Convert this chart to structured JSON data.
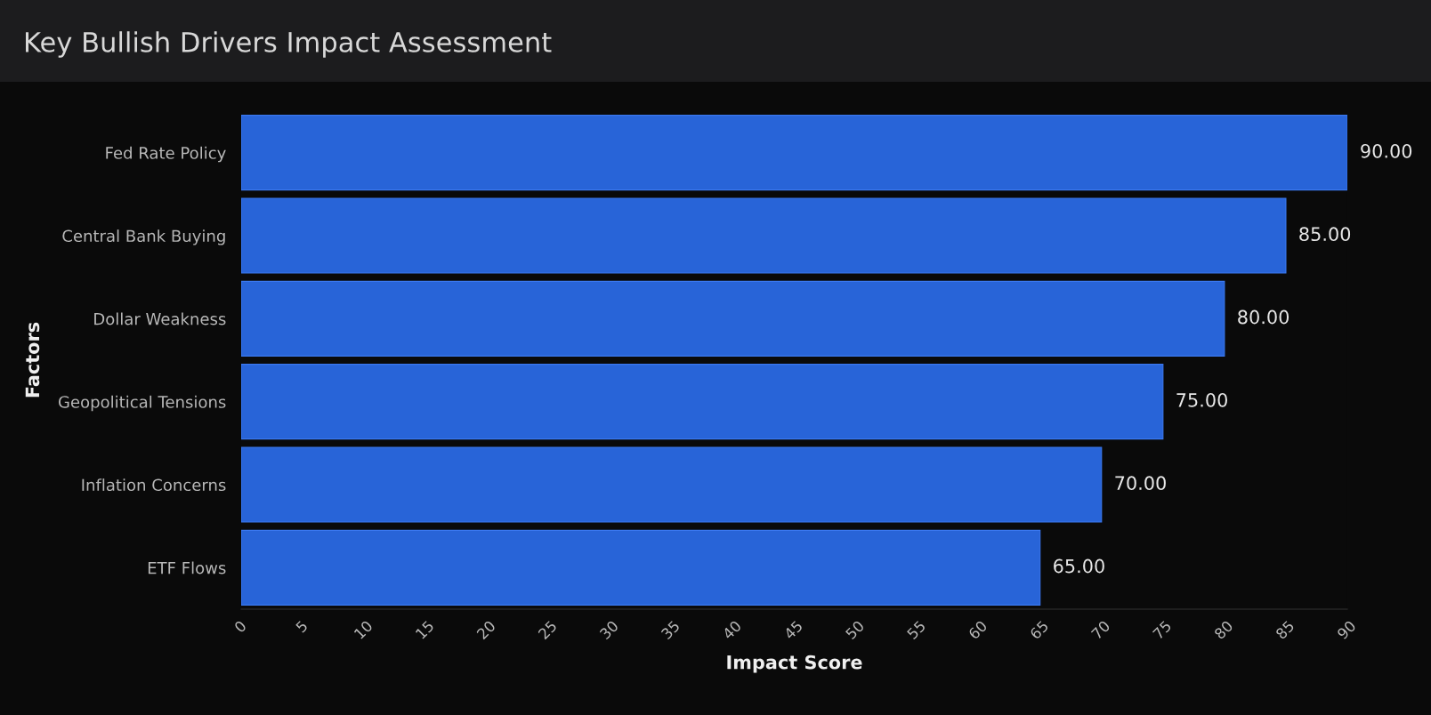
{
  "chart_data": {
    "type": "bar",
    "orientation": "horizontal",
    "title": "Key Bullish Drivers Impact Assessment",
    "xlabel": "Impact Score",
    "ylabel": "Factors",
    "categories": [
      "Fed Rate Policy",
      "Central Bank Buying",
      "Dollar Weakness",
      "Geopolitical Tensions",
      "Inflation Concerns",
      "ETF Flows"
    ],
    "values": [
      90,
      85,
      80,
      75,
      70,
      65
    ],
    "value_labels": [
      "90.00",
      "85.00",
      "80.00",
      "75.00",
      "70.00",
      "65.00"
    ],
    "color": "#2864d8",
    "xlim": [
      0,
      90
    ],
    "xticks": [
      0,
      5,
      10,
      15,
      20,
      25,
      30,
      35,
      40,
      45,
      50,
      55,
      60,
      65,
      70,
      75,
      80,
      85,
      90
    ],
    "grid": false,
    "legend": false
  }
}
